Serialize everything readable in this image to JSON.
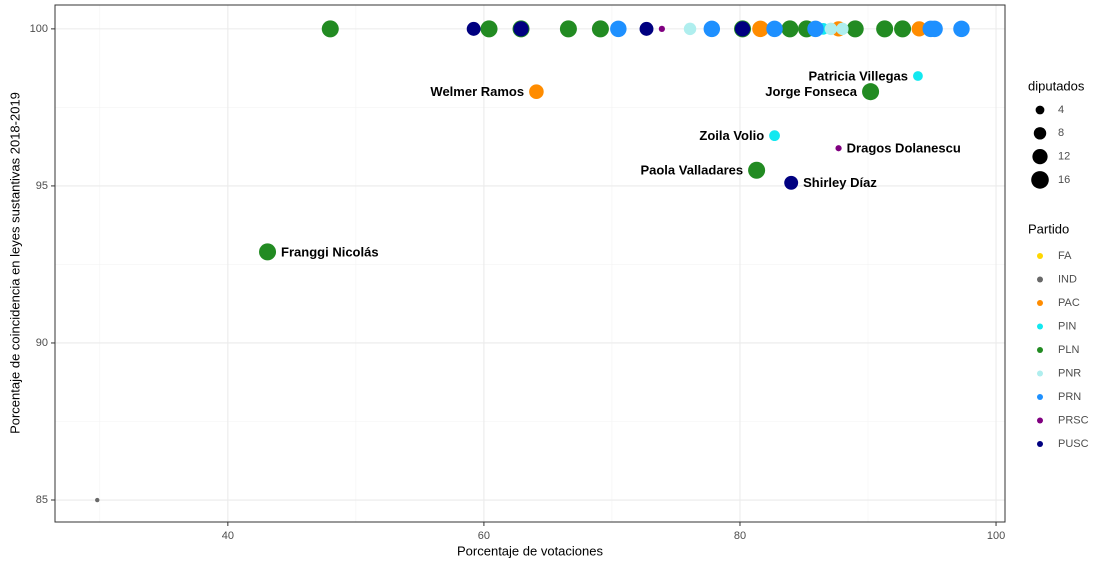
{
  "chart_data": {
    "type": "scatter",
    "xlabel": "Porcentaje de votaciones",
    "ylabel": "Porcentaje de coincidencia en leyes sustantivas 2018-2019",
    "xlim": [
      26.5,
      100.7
    ],
    "ylim": [
      84.3,
      100.76
    ],
    "xticks": [
      40,
      60,
      80,
      100
    ],
    "yticks": [
      85,
      90,
      95,
      100
    ],
    "x_minor_ticks": [
      30,
      50,
      70,
      90
    ],
    "y_minor_ticks": [
      87.5,
      92.5,
      97.5
    ],
    "grid": true,
    "size_legend_title": "diputados",
    "size_legend": [
      4,
      8,
      12,
      16
    ],
    "color_legend_title": "Partido",
    "series": [
      {
        "name": "FA",
        "color": "#FFD700",
        "x": [
          81.5
        ],
        "values": [
          100
        ],
        "sizes": [
          4
        ],
        "labels": [
          null
        ]
      },
      {
        "name": "IND",
        "color": "#696969",
        "x": [
          29.8
        ],
        "values": [
          85
        ],
        "sizes": [
          1
        ],
        "labels": [
          null
        ]
      },
      {
        "name": "PAC",
        "color": "#FF8C00",
        "x": [
          64.1,
          81.6,
          87.7,
          91.3,
          94.0
        ],
        "values": [
          98.0,
          100,
          100,
          100,
          100
        ],
        "sizes": [
          11,
          14,
          12,
          13,
          12
        ],
        "labels": [
          "Welmer Ramos",
          null,
          null,
          null,
          null
        ]
      },
      {
        "name": "PIN",
        "color": "#12E8F0",
        "x": [
          93.9,
          82.7,
          86.5
        ],
        "values": [
          98.5,
          96.6,
          100
        ],
        "sizes": [
          5,
          6,
          7
        ],
        "labels": [
          "Patricia Villegas",
          "Zoila Volio",
          null
        ]
      },
      {
        "name": "PLN",
        "color": "#228B22",
        "x": [
          48.0,
          60.4,
          62.9,
          66.6,
          69.1,
          80.2,
          83.9,
          85.2,
          89.0,
          91.3,
          92.7,
          90.2,
          81.3,
          43.1
        ],
        "values": [
          100,
          100,
          100,
          100,
          100,
          100,
          100,
          100,
          100,
          100,
          100,
          98.0,
          95.5,
          92.9
        ],
        "sizes": [
          15,
          15,
          15,
          15,
          15,
          15,
          15,
          15,
          15,
          15,
          15,
          15,
          15,
          15
        ],
        "labels": [
          null,
          null,
          null,
          null,
          null,
          null,
          null,
          null,
          null,
          null,
          null,
          "Jorge Fonseca",
          "Paola Valladares",
          "Franggi Nicolás"
        ]
      },
      {
        "name": "PNR",
        "color": "#AFEEEE",
        "x": [
          76.1,
          87.1,
          88.0
        ],
        "values": [
          100,
          100,
          100
        ],
        "sizes": [
          8,
          8,
          8
        ],
        "labels": [
          null,
          null,
          null
        ]
      },
      {
        "name": "PRN",
        "color": "#1E90FF",
        "x": [
          70.5,
          77.8,
          82.7,
          85.9,
          94.9,
          95.2,
          97.3
        ],
        "values": [
          100,
          100,
          100,
          100,
          100,
          100,
          100
        ],
        "sizes": [
          14,
          14,
          14,
          14,
          14,
          14,
          14
        ],
        "labels": [
          null,
          null,
          null,
          null,
          null,
          null,
          null
        ]
      },
      {
        "name": "PRSC",
        "color": "#800080",
        "x": [
          73.9,
          87.7
        ],
        "values": [
          100,
          96.2
        ],
        "sizes": [
          2,
          2
        ],
        "labels": [
          null,
          "Dragos Dolanescu"
        ]
      },
      {
        "name": "PUSC",
        "color": "#000080",
        "x": [
          59.2,
          62.9,
          72.7,
          80.2,
          84.0
        ],
        "values": [
          100,
          100,
          100,
          100,
          95.1
        ],
        "sizes": [
          10,
          12,
          10,
          12,
          10
        ],
        "labels": [
          null,
          null,
          null,
          null,
          "Shirley Díaz"
        ]
      }
    ]
  }
}
